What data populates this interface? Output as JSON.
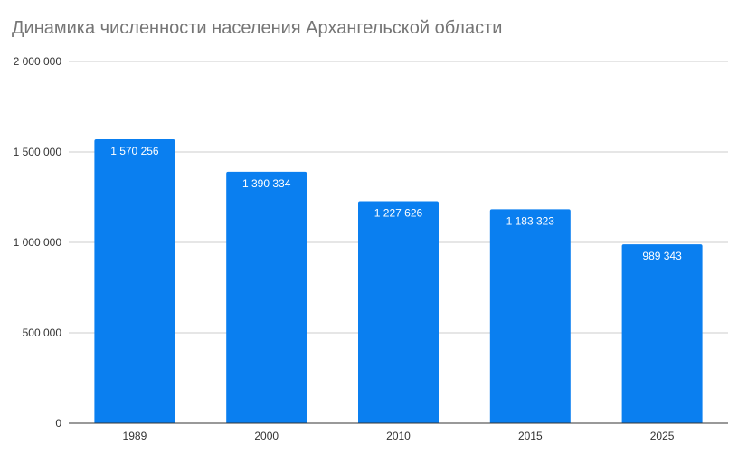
{
  "chart_data": {
    "type": "bar",
    "title": "Динамика численности населения Архангельской области",
    "xlabel": "",
    "ylabel": "",
    "categories": [
      "1989",
      "2000",
      "2010",
      "2015",
      "2025"
    ],
    "values": [
      1570256,
      1390334,
      1227626,
      1183323,
      989343
    ],
    "data_labels": [
      "1 570 256",
      "1 390 334",
      "1 227 626",
      "1 183 323",
      "989 343"
    ],
    "ylim": [
      0,
      2000000
    ],
    "yticks": [
      0,
      500000,
      1000000,
      1500000,
      2000000
    ],
    "ytick_labels": [
      "0",
      "500 000",
      "1 000 000",
      "1 500 000",
      "2 000 000"
    ],
    "grid": true,
    "legend": "none",
    "bar_color": "#0a7ff0",
    "grid_color": "#cccccc",
    "axis_color": "#333333",
    "title_color": "#757575"
  }
}
